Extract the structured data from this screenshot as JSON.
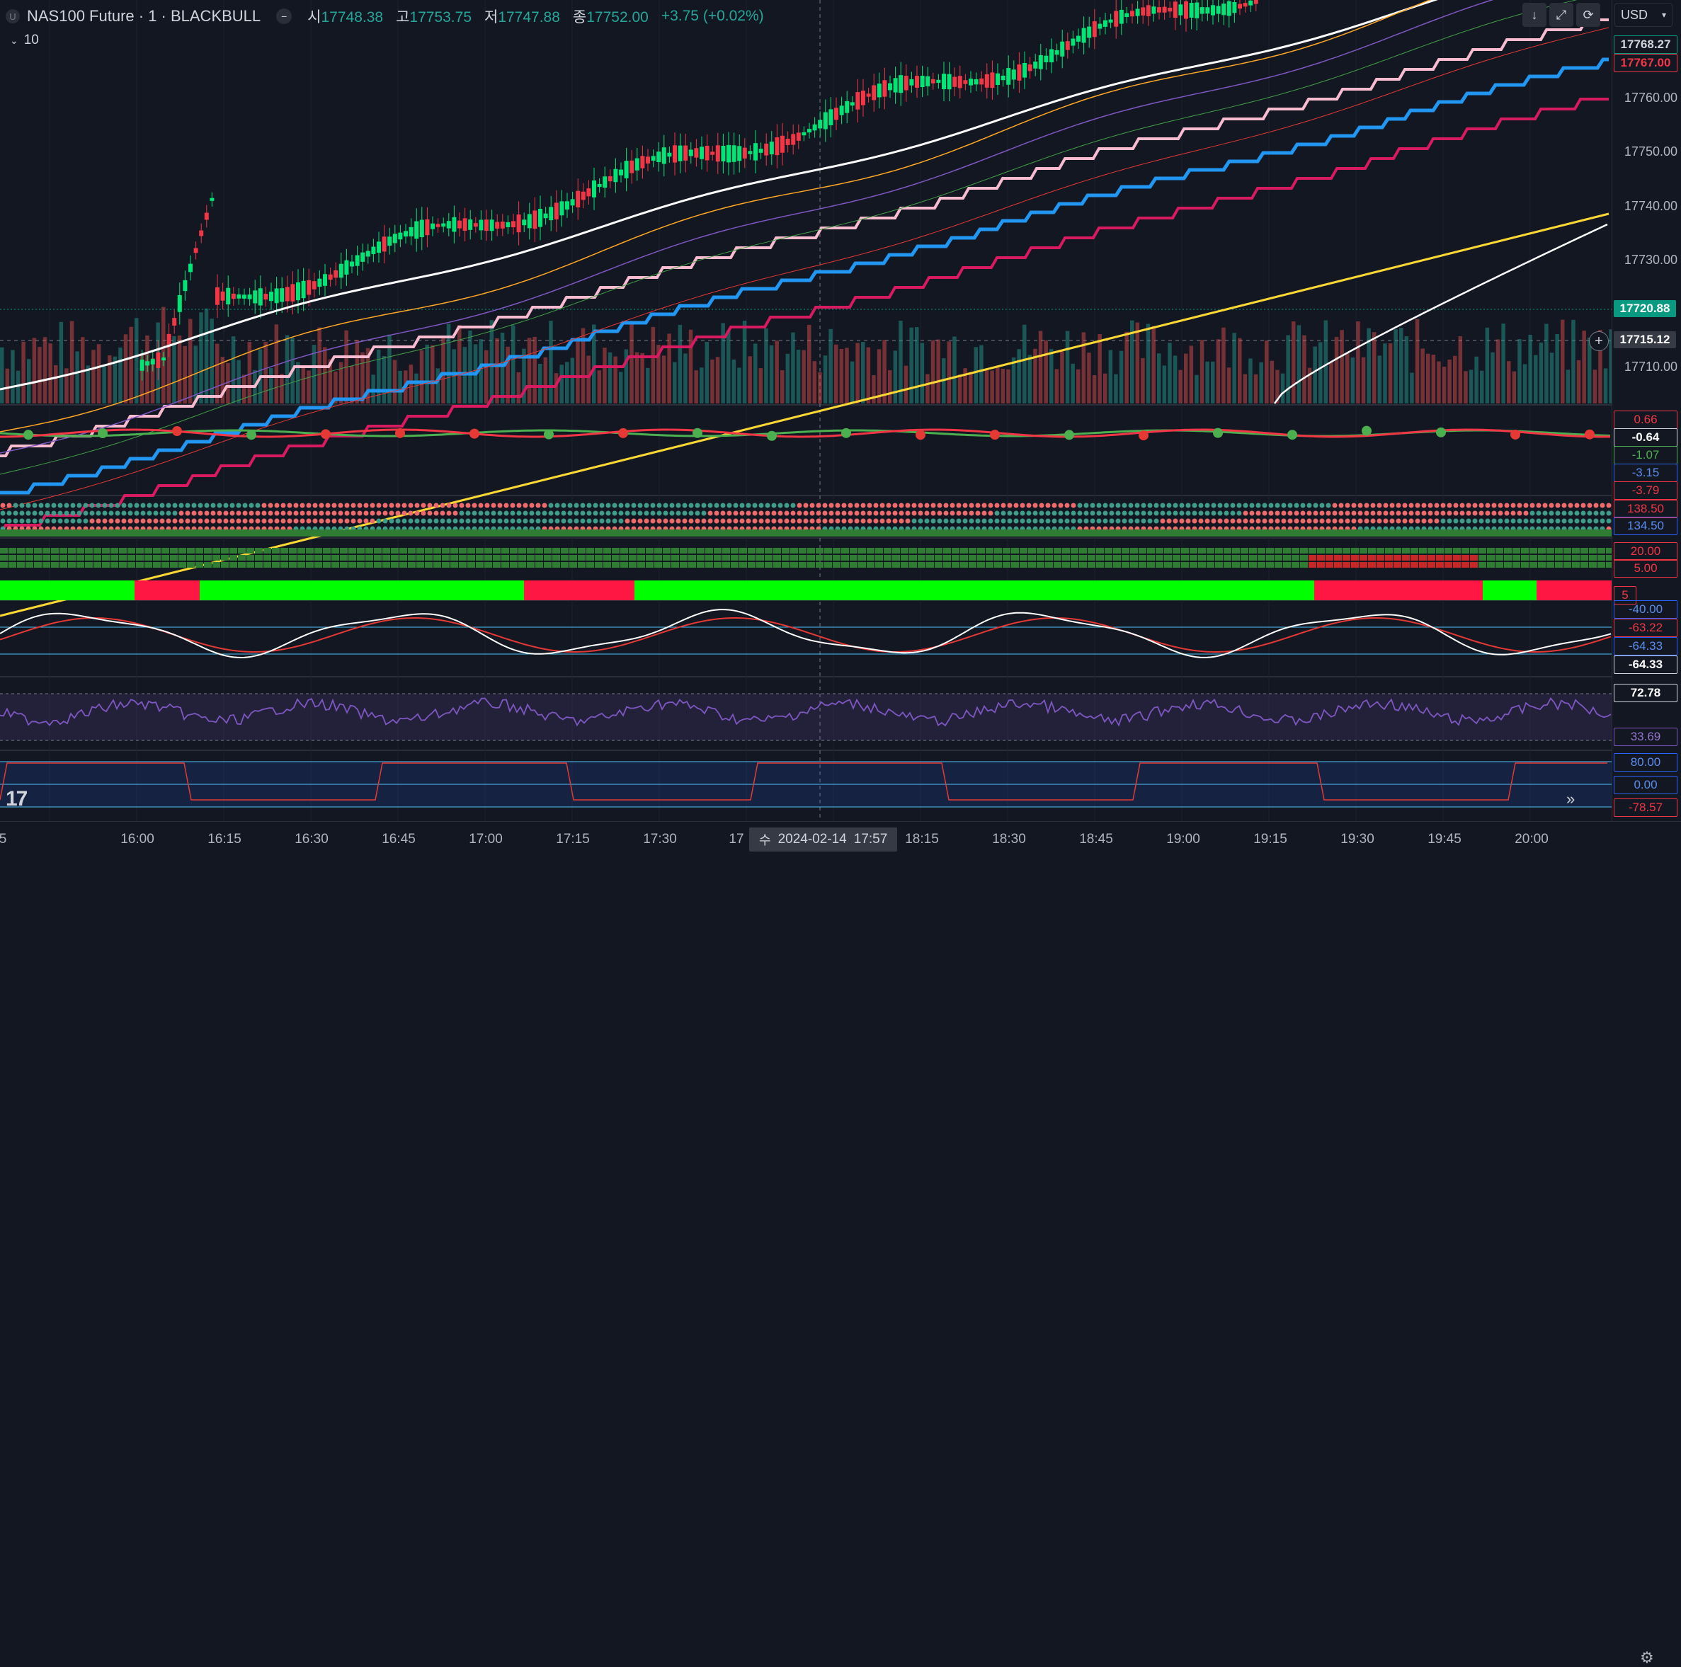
{
  "legend": {
    "badge": "U",
    "symbol": "NAS100 Future · 1 · BLACKBULL",
    "open_label": "시",
    "open": "17748.38",
    "high_label": "고",
    "high": "17753.75",
    "low_label": "저",
    "low": "17747.88",
    "close_label": "종",
    "close": "17752.00",
    "change": "+3.75 (+0.02%)"
  },
  "indicators_toggle": {
    "count": "10"
  },
  "currency": "USD",
  "price_axis": {
    "main_ticks": [
      "17760.00",
      "17750.00",
      "17740.00",
      "17730.00",
      "17710.00"
    ],
    "boxes": {
      "p1": "17768.27",
      "p2": "17767.00",
      "p3": "17720.88",
      "p4": "17715.12"
    },
    "pane2": [
      "0.66",
      "-0.64",
      "-1.07",
      "-3.15",
      "-3.79"
    ],
    "pane3": [
      "138.50",
      "134.50",
      "20.00",
      "5.00",
      "5"
    ],
    "pane4": [
      "-40.00",
      "-63.22",
      "-64.33",
      "-64.33"
    ],
    "pane5": [
      "72.78",
      "33.69"
    ],
    "pane6": [
      "80.00",
      "0.00",
      "-78.57"
    ]
  },
  "time_axis": {
    "labels": [
      "5",
      "16:00",
      "16:15",
      "16:30",
      "16:45",
      "17:00",
      "17:15",
      "17:30",
      "17",
      "18:15",
      "18:30",
      "18:45",
      "19:00",
      "19:15",
      "19:30",
      "19:45",
      "20:00"
    ],
    "crosshair_day": "수",
    "crosshair_date": "2024-02-14",
    "crosshair_time": "17:57"
  },
  "colors": {
    "bg": "#131722",
    "up": "#26a69a",
    "down": "#ef5350",
    "candle_up": "#00e676",
    "candle_down": "#f23645",
    "axis_green": "#089981",
    "axis_red": "#f23645"
  },
  "icons": {
    "scroll_down": "arrow-down-icon",
    "expand": "expand-icon",
    "reload": "reload-icon",
    "go_to_realtime": "double-chevron-right-icon",
    "settings": "gear-icon",
    "add": "plus-circle-icon"
  }
}
